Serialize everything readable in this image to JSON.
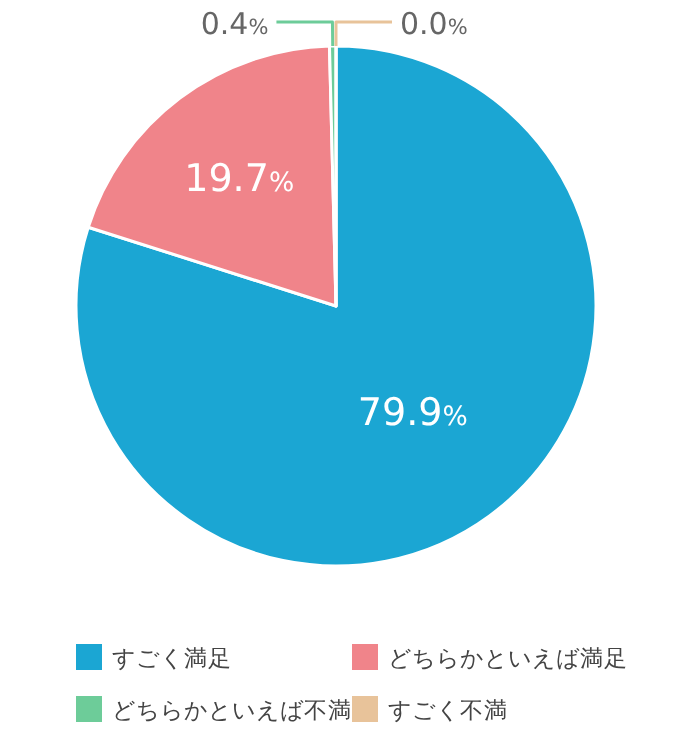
{
  "chart_data": {
    "type": "pie",
    "categories": [
      "すごく満足",
      "どちらかといえば満足",
      "どちらかといえば不満",
      "すごく不満"
    ],
    "values": [
      79.9,
      19.7,
      0.4,
      0.0
    ],
    "colors": [
      "#1ba6d3",
      "#f0848a",
      "#6dcc99",
      "#e8c39a"
    ],
    "value_labels": [
      "79.9%",
      "19.7%",
      "0.4%",
      "0.0%"
    ],
    "legend": "bottom"
  }
}
